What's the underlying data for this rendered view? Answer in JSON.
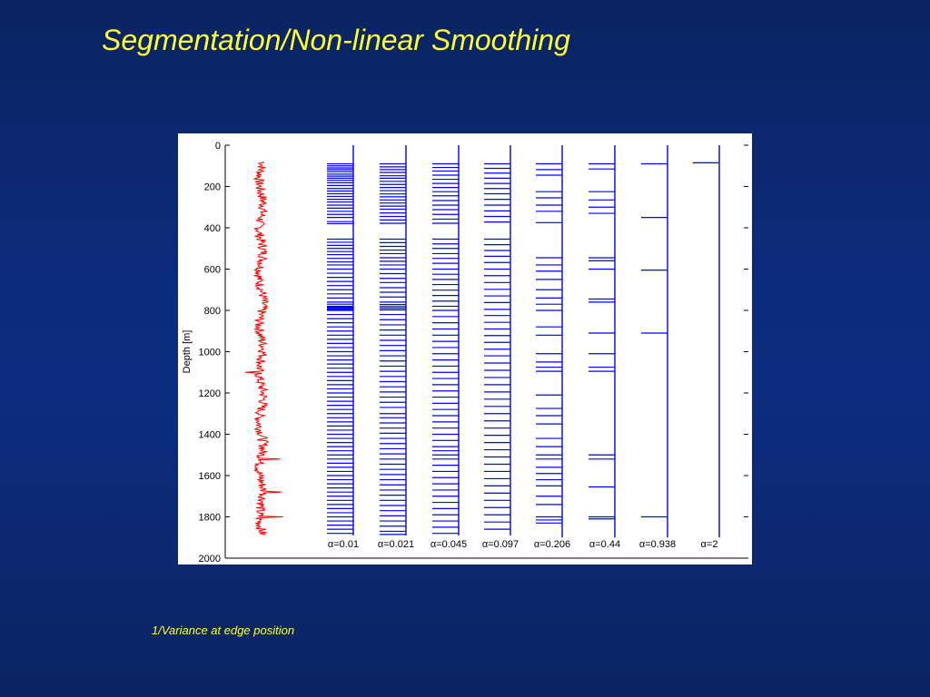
{
  "title": "Segmentation/Non-linear Smoothing",
  "caption": "1/Variance at edge position",
  "colors": {
    "background": "#0c2a78",
    "title": "#ffff33",
    "signal": "#ff0000",
    "edges": "#0000ff"
  },
  "chart_data": {
    "type": "line",
    "orientation": "vertical depth axis",
    "ylabel": "Depth [m]",
    "xlabel": "",
    "ylim": [
      0,
      2000
    ],
    "y_inverted": true,
    "yticks": [
      0,
      200,
      400,
      600,
      800,
      1000,
      1200,
      1400,
      1600,
      1800,
      2000
    ],
    "grid": false,
    "signal": {
      "color": "#ff0000",
      "depth_range": [
        80,
        1890
      ],
      "baseline": 0.12,
      "notable_spikes": [
        {
          "depth": 1100,
          "value": -0.1
        },
        {
          "depth": 1520,
          "value": 0.38
        },
        {
          "depth": 1680,
          "value": 0.4
        },
        {
          "depth": 1800,
          "value": 0.42
        }
      ]
    },
    "series": [
      {
        "label": "α=0.01",
        "span": [
          80,
          1890
        ],
        "edge_depths": [
          90,
          100,
          110,
          118,
          128,
          140,
          150,
          160,
          170,
          182,
          195,
          210,
          222,
          235,
          248,
          262,
          275,
          290,
          305,
          320,
          335,
          350,
          370,
          380,
          455,
          470,
          485,
          500,
          515,
          530,
          548,
          565,
          580,
          600,
          620,
          640,
          660,
          680,
          700,
          720,
          740,
          760,
          770,
          780,
          785,
          790,
          795,
          800,
          820,
          840,
          860,
          880,
          900,
          920,
          940,
          960,
          980,
          1000,
          1020,
          1040,
          1060,
          1080,
          1100,
          1120,
          1140,
          1160,
          1180,
          1200,
          1220,
          1240,
          1260,
          1280,
          1300,
          1320,
          1340,
          1360,
          1380,
          1400,
          1420,
          1440,
          1460,
          1480,
          1500,
          1520,
          1540,
          1560,
          1580,
          1600,
          1620,
          1640,
          1660,
          1680,
          1700,
          1720,
          1740,
          1760,
          1780,
          1800,
          1820,
          1840,
          1860,
          1880
        ]
      },
      {
        "label": "α=0.021",
        "span": [
          80,
          1890
        ],
        "edge_depths": [
          90,
          105,
          118,
          132,
          148,
          160,
          175,
          190,
          205,
          220,
          236,
          250,
          265,
          280,
          295,
          310,
          328,
          345,
          362,
          378,
          455,
          472,
          490,
          508,
          525,
          545,
          562,
          580,
          600,
          622,
          645,
          665,
          690,
          712,
          735,
          760,
          772,
          782,
          790,
          798,
          820,
          845,
          870,
          895,
          920,
          945,
          970,
          995,
          1020,
          1045,
          1070,
          1095,
          1120,
          1145,
          1170,
          1195,
          1220,
          1245,
          1270,
          1300,
          1320,
          1345,
          1370,
          1395,
          1420,
          1445,
          1470,
          1495,
          1520,
          1545,
          1570,
          1595,
          1620,
          1645,
          1670,
          1695,
          1720,
          1745,
          1770,
          1795,
          1820,
          1845,
          1870,
          1885
        ]
      },
      {
        "label": "α=0.045",
        "span": [
          80,
          1890
        ],
        "edge_depths": [
          90,
          108,
          125,
          145,
          165,
          185,
          205,
          225,
          245,
          268,
          290,
          312,
          335,
          358,
          378,
          455,
          478,
          500,
          525,
          548,
          572,
          600,
          625,
          650,
          675,
          702,
          728,
          755,
          780,
          800,
          830,
          860,
          890,
          920,
          950,
          980,
          1010,
          1040,
          1070,
          1100,
          1130,
          1160,
          1190,
          1220,
          1250,
          1280,
          1310,
          1340,
          1370,
          1400,
          1430,
          1460,
          1480,
          1500,
          1520,
          1550,
          1580,
          1610,
          1640,
          1670,
          1700,
          1730,
          1760,
          1790,
          1820,
          1850,
          1880
        ]
      },
      {
        "label": "α=0.097",
        "span": [
          80,
          1890
        ],
        "edge_depths": [
          90,
          112,
          135,
          160,
          185,
          210,
          235,
          262,
          290,
          318,
          345,
          372,
          455,
          482,
          510,
          538,
          568,
          600,
          632,
          665,
          698,
          730,
          762,
          795,
          825,
          858,
          890,
          922,
          955,
          988,
          1020,
          1055,
          1090,
          1125,
          1160,
          1195,
          1230,
          1265,
          1300,
          1335,
          1370,
          1405,
          1440,
          1475,
          1510,
          1545,
          1580,
          1615,
          1650,
          1685,
          1720,
          1755,
          1790,
          1825,
          1860
        ]
      },
      {
        "label": "α=0.206",
        "span": [
          80,
          1900
        ],
        "edge_depths": [
          90,
          118,
          145,
          225,
          255,
          290,
          320,
          375,
          545,
          580,
          610,
          650,
          700,
          740,
          770,
          800,
          880,
          920,
          1010,
          1050,
          1075,
          1095,
          1210,
          1275,
          1310,
          1350,
          1420,
          1460,
          1500,
          1520,
          1560,
          1590,
          1620,
          1650,
          1700,
          1740,
          1800,
          1815,
          1830
        ]
      },
      {
        "label": "α=0.44",
        "span": [
          80,
          1900
        ],
        "edge_depths": [
          90,
          115,
          225,
          265,
          300,
          330,
          545,
          560,
          600,
          745,
          760,
          910,
          1010,
          1075,
          1095,
          1500,
          1520,
          1655,
          1800,
          1810
        ]
      },
      {
        "label": "α=0.938",
        "span": [
          80,
          1900
        ],
        "edge_depths": [
          90,
          350,
          605,
          910,
          1800
        ]
      },
      {
        "label": "α=2",
        "span": [
          80,
          1900
        ],
        "edge_depths": [
          85
        ]
      }
    ]
  }
}
